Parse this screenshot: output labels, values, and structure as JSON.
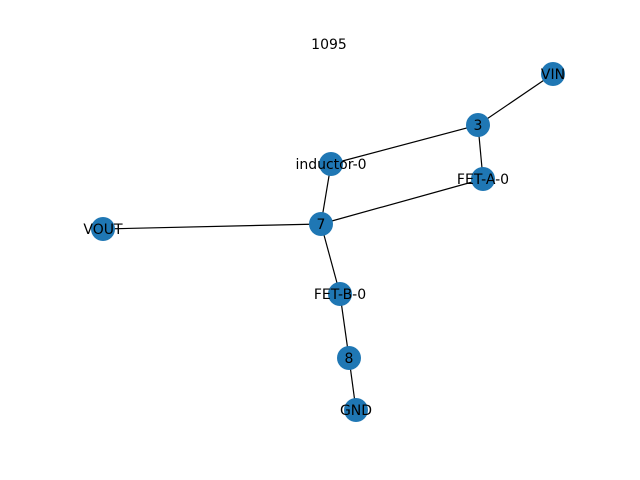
{
  "graph": {
    "title": "1095",
    "node_color": "#1f77b4",
    "edge_color": "#000000",
    "nodes": [
      {
        "id": "VIN",
        "label": "VIN"
      },
      {
        "id": "3",
        "label": "3"
      },
      {
        "id": "inductor-0",
        "label": "inductor-0"
      },
      {
        "id": "FET-A-0",
        "label": "FET-A-0"
      },
      {
        "id": "7",
        "label": "7"
      },
      {
        "id": "VOUT",
        "label": "VOUT"
      },
      {
        "id": "FET-B-0",
        "label": "FET-B-0"
      },
      {
        "id": "8",
        "label": "8"
      },
      {
        "id": "GND",
        "label": "GND"
      }
    ],
    "edges": [
      [
        "VIN",
        "3"
      ],
      [
        "3",
        "inductor-0"
      ],
      [
        "3",
        "FET-A-0"
      ],
      [
        "inductor-0",
        "7"
      ],
      [
        "FET-A-0",
        "7"
      ],
      [
        "7",
        "VOUT"
      ],
      [
        "7",
        "FET-B-0"
      ],
      [
        "FET-B-0",
        "8"
      ],
      [
        "8",
        "GND"
      ]
    ]
  }
}
